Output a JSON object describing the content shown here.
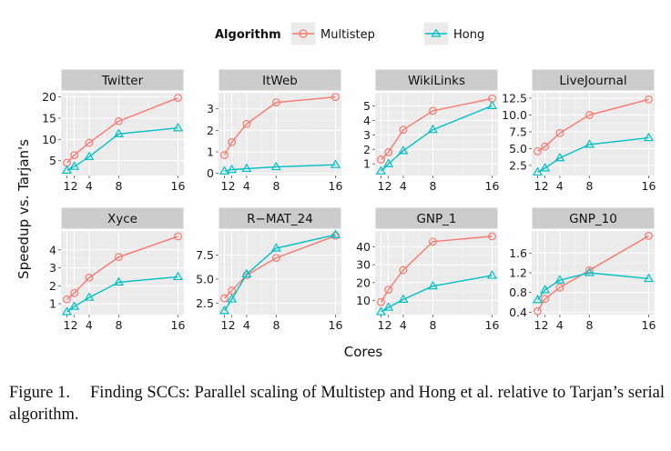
{
  "figure": {
    "legend": {
      "title": "Algorithm",
      "items": [
        {
          "name": "Multistep",
          "color": "#F8766D",
          "marker": "circle"
        },
        {
          "name": "Hong",
          "color": "#00BFC4",
          "marker": "triangle"
        }
      ]
    },
    "ylabel": "Speedup vs. Tarjan's",
    "xlabel": "Cores",
    "caption_label": "Figure 1.",
    "caption_text": "Finding SCCs: Parallel scaling of Multistep and Hong et al. relative to Tarjan’s serial algorithm."
  },
  "chart_data": [
    {
      "type": "line",
      "title": "Twitter",
      "x": [
        1,
        2,
        4,
        8,
        16
      ],
      "xticks": [
        1,
        2,
        4,
        8,
        16
      ],
      "xtick_labels": [
        "1",
        "2",
        "4",
        "8",
        "16"
      ],
      "ylim": [
        1.5,
        21
      ],
      "yticks": [
        5,
        10,
        15,
        20
      ],
      "series": [
        {
          "name": "Multistep",
          "values": [
            4.5,
            6.3,
            9.2,
            14.3,
            19.8
          ]
        },
        {
          "name": "Hong",
          "values": [
            2.7,
            3.6,
            5.9,
            11.3,
            12.7
          ]
        }
      ]
    },
    {
      "type": "line",
      "title": "ItWeb",
      "x": [
        1,
        2,
        4,
        8,
        16
      ],
      "xticks": [
        1,
        2,
        4,
        8,
        16
      ],
      "xtick_labels": [
        "1",
        "2",
        "4",
        "8",
        "16"
      ],
      "ylim": [
        -0.1,
        3.75
      ],
      "yticks": [
        0,
        1,
        2,
        3
      ],
      "series": [
        {
          "name": "Multistep",
          "values": [
            0.85,
            1.45,
            2.3,
            3.3,
            3.55
          ]
        },
        {
          "name": "Hong",
          "values": [
            0.1,
            0.17,
            0.22,
            0.3,
            0.4
          ]
        }
      ]
    },
    {
      "type": "line",
      "title": "WikiLinks",
      "x": [
        1,
        2,
        4,
        8,
        16
      ],
      "xticks": [
        1,
        2,
        4,
        8,
        16
      ],
      "xtick_labels": [
        "1",
        "2",
        "4",
        "8",
        "16"
      ],
      "ylim": [
        0.2,
        5.9
      ],
      "yticks": [
        1,
        2,
        3,
        4,
        5
      ],
      "series": [
        {
          "name": "Multistep",
          "values": [
            1.3,
            1.8,
            3.35,
            4.65,
            5.5
          ]
        },
        {
          "name": "Hong",
          "values": [
            0.5,
            1.0,
            1.9,
            3.35,
            5.0
          ]
        }
      ]
    },
    {
      "type": "line",
      "title": "LiveJournal",
      "x": [
        1,
        2,
        4,
        8,
        16
      ],
      "xticks": [
        1,
        2,
        4,
        8,
        16
      ],
      "xtick_labels": [
        "1",
        "2",
        "4",
        "8",
        "16"
      ],
      "ylim": [
        1.0,
        13.3
      ],
      "yticks": [
        2.5,
        5.0,
        7.5,
        10.0,
        12.5
      ],
      "ytick_labels": [
        "2.5",
        "5.0",
        "7.5",
        "10.0",
        "12.5"
      ],
      "series": [
        {
          "name": "Multistep",
          "values": [
            4.6,
            5.3,
            7.3,
            10.0,
            12.3
          ]
        },
        {
          "name": "Hong",
          "values": [
            1.5,
            2.1,
            3.6,
            5.6,
            6.6
          ]
        }
      ]
    },
    {
      "type": "line",
      "title": "Xyce",
      "x": [
        1,
        2,
        4,
        8,
        16
      ],
      "xticks": [
        1,
        2,
        4,
        8,
        16
      ],
      "xtick_labels": [
        "1",
        "2",
        "4",
        "8",
        "16"
      ],
      "ylim": [
        0.4,
        5.05
      ],
      "yticks": [
        1,
        2,
        3,
        4
      ],
      "series": [
        {
          "name": "Multistep",
          "values": [
            1.25,
            1.6,
            2.45,
            3.6,
            4.75
          ]
        },
        {
          "name": "Hong",
          "values": [
            0.55,
            0.85,
            1.35,
            2.2,
            2.5
          ]
        }
      ]
    },
    {
      "type": "line",
      "title": "R−MAT_24",
      "x": [
        1,
        2,
        4,
        8,
        16
      ],
      "xticks": [
        1,
        2,
        4,
        8,
        16
      ],
      "xtick_labels": [
        "1",
        "2",
        "4",
        "8",
        "16"
      ],
      "ylim": [
        1.3,
        10.0
      ],
      "yticks": [
        2.5,
        5.0,
        7.5
      ],
      "ytick_labels": [
        "2.5",
        "5.0",
        "7.5"
      ],
      "series": [
        {
          "name": "Multistep",
          "values": [
            3.0,
            3.8,
            5.4,
            7.2,
            9.5
          ]
        },
        {
          "name": "Hong",
          "values": [
            1.7,
            2.9,
            5.5,
            8.2,
            9.6
          ]
        }
      ]
    },
    {
      "type": "line",
      "title": "GNP_1",
      "x": [
        1,
        2,
        4,
        8,
        16
      ],
      "xticks": [
        1,
        2,
        4,
        8,
        16
      ],
      "xtick_labels": [
        "1",
        "2",
        "4",
        "8",
        "16"
      ],
      "ylim": [
        2,
        49
      ],
      "yticks": [
        10,
        20,
        30,
        40
      ],
      "series": [
        {
          "name": "Multistep",
          "values": [
            9.0,
            16.0,
            27.0,
            43.0,
            46.0
          ]
        },
        {
          "name": "Hong",
          "values": [
            3.5,
            6.0,
            10.5,
            18.0,
            24.0
          ]
        }
      ]
    },
    {
      "type": "line",
      "title": "GNP_10",
      "x": [
        1,
        2,
        4,
        8,
        16
      ],
      "xticks": [
        1,
        2,
        4,
        8,
        16
      ],
      "xtick_labels": [
        "1",
        "2",
        "4",
        "8",
        "16"
      ],
      "ylim": [
        0.35,
        2.05
      ],
      "yticks": [
        0.4,
        0.8,
        1.2,
        1.6
      ],
      "ytick_labels": [
        "0.4",
        "0.8",
        "1.2",
        "1.6"
      ],
      "series": [
        {
          "name": "Multistep",
          "values": [
            0.42,
            0.67,
            0.9,
            1.25,
            1.95
          ]
        },
        {
          "name": "Hong",
          "values": [
            0.65,
            0.85,
            1.05,
            1.2,
            1.08
          ]
        }
      ]
    }
  ]
}
